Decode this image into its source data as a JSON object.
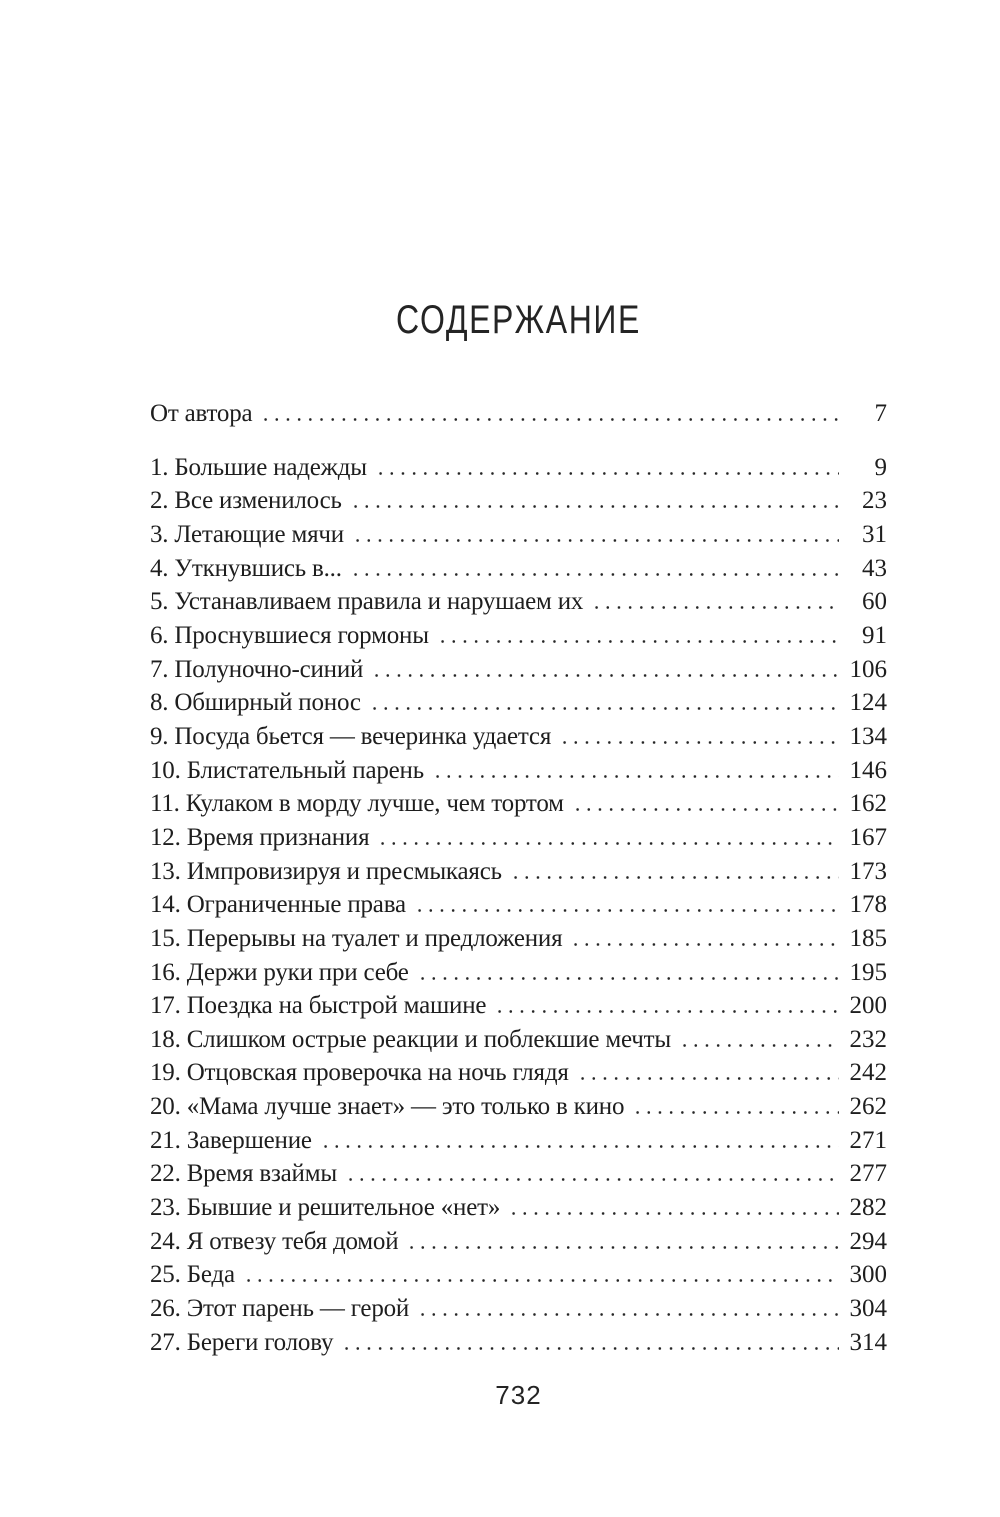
{
  "page": {
    "title": "СОДЕРЖАНИЕ",
    "footer_page_number": "732"
  },
  "colors": {
    "background": "#ffffff",
    "text": "#1e1e1e",
    "title_text": "#242424"
  },
  "toc": {
    "entries": [
      {
        "label": "От автора",
        "page": "7"
      },
      {
        "label": "1. Большие надежды",
        "page": "9"
      },
      {
        "label": "2. Все изменилось",
        "page": "23"
      },
      {
        "label": "3. Летающие мячи",
        "page": "31"
      },
      {
        "label": "4. Уткнувшись в...",
        "page": "43"
      },
      {
        "label": "5. Устанавливаем правила и нарушаем их",
        "page": "60"
      },
      {
        "label": "6. Проснувшиеся гормоны",
        "page": "91"
      },
      {
        "label": "7. Полуночно-синий",
        "page": "106"
      },
      {
        "label": "8. Обширный понос",
        "page": "124"
      },
      {
        "label": "9. Посуда бьется — вечеринка удается",
        "page": "134"
      },
      {
        "label": "10. Блистательный парень",
        "page": "146"
      },
      {
        "label": "11. Кулаком в морду лучше, чем тортом",
        "page": "162"
      },
      {
        "label": "12. Время признания",
        "page": "167"
      },
      {
        "label": "13. Импровизируя и пресмыкаясь",
        "page": "173"
      },
      {
        "label": "14. Ограниченные права",
        "page": "178"
      },
      {
        "label": "15. Перерывы на туалет и предложения",
        "page": "185"
      },
      {
        "label": "16. Держи руки при себе",
        "page": "195"
      },
      {
        "label": "17. Поездка на быстрой машине",
        "page": "200"
      },
      {
        "label": "18. Слишком острые реакции и поблекшие мечты",
        "page": "232"
      },
      {
        "label": "19. Отцовская проверочка на ночь глядя",
        "page": "242"
      },
      {
        "label": "20. «Мама лучше знает» — это только в кино",
        "page": "262"
      },
      {
        "label": "21. Завершение",
        "page": "271"
      },
      {
        "label": "22. Время взаймы",
        "page": "277"
      },
      {
        "label": "23. Бывшие и решительное «нет»",
        "page": "282"
      },
      {
        "label": "24. Я отвезу тебя домой",
        "page": "294"
      },
      {
        "label": "25. Беда",
        "page": "300"
      },
      {
        "label": "26. Этот парень — герой",
        "page": "304"
      },
      {
        "label": "27. Береги голову",
        "page": "314"
      }
    ]
  }
}
